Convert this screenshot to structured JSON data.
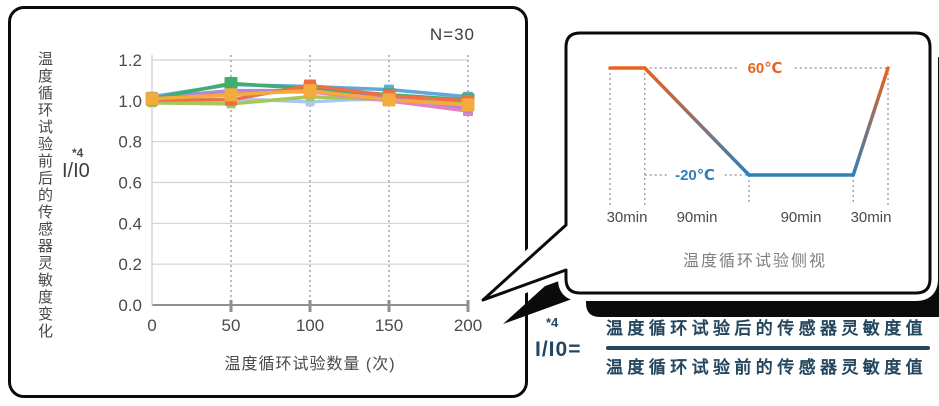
{
  "left_card": {
    "sample_count_label": "N=30",
    "y_axis_title": "温度循环试验前后的传感器灵敏度变化",
    "y_axis_footnote": "*4",
    "y_axis_unit": "I/I0",
    "x_axis_title": "温度循环试验数量 (次)"
  },
  "chart_data": [
    {
      "type": "line",
      "title": "温度循环试验前后的传感器灵敏度变化",
      "xlabel": "温度循环试验数量 (次)",
      "ylabel": "I/I0",
      "annotation": "N=30",
      "x": [
        0,
        50,
        100,
        150,
        200
      ],
      "xticks": [
        0,
        50,
        100,
        150,
        200
      ],
      "yticks": [
        0.0,
        0.2,
        0.4,
        0.6,
        0.8,
        1.0,
        1.2
      ],
      "ylim": [
        0.0,
        1.2
      ],
      "grid": "horizontal-solid, vertical-dotted",
      "legend_position": "none",
      "series": [
        {
          "name": "sample-pale-blue",
          "color": "#A8C9F0",
          "marker": "square",
          "marker_size": 9,
          "values": [
            1.0,
            1.01,
            0.995,
            1.015,
            1.005
          ]
        },
        {
          "name": "sample-yellow-green",
          "color": "#A5C75C",
          "marker": "square",
          "marker_size": 9,
          "values": [
            0.99,
            0.985,
            1.02,
            1.005,
            0.99
          ]
        },
        {
          "name": "sample-pink",
          "color": "#E381C3",
          "marker": "square",
          "marker_size": 10,
          "values": [
            1.0,
            1.04,
            1.045,
            1.0,
            0.95
          ]
        },
        {
          "name": "sample-purple",
          "color": "#B287D8",
          "marker": "square",
          "marker_size": 10,
          "values": [
            1.015,
            1.05,
            1.05,
            1.02,
            0.965
          ]
        },
        {
          "name": "sample-sky-blue",
          "color": "#60A8D8",
          "marker": "square",
          "marker_size": 10,
          "values": [
            1.02,
            1.08,
            1.07,
            1.055,
            1.02
          ]
        },
        {
          "name": "sample-green",
          "color": "#3FAE6E",
          "marker": "square",
          "marker_size": 13,
          "values": [
            1.01,
            1.085,
            1.06,
            1.03,
            1.005
          ]
        },
        {
          "name": "sample-orange-red",
          "color": "#EE6F45",
          "marker": "square",
          "marker_size": 12,
          "values": [
            1.005,
            1.005,
            1.075,
            1.025,
            1.0
          ]
        },
        {
          "name": "sample-amber",
          "color": "#F5AA3D",
          "marker": "square",
          "marker_size": 13,
          "values": [
            1.01,
            1.03,
            1.05,
            1.005,
            0.98
          ]
        }
      ]
    },
    {
      "type": "line",
      "title": "温度循环试验侧视",
      "x_minutes": [
        0,
        30,
        120,
        210,
        240
      ],
      "y_celsius": [
        60,
        60,
        -20,
        -20,
        60
      ],
      "durations": [
        "30min",
        "90min",
        "90min",
        "30min"
      ],
      "high_label": "60℃",
      "low_label": "-20℃",
      "high_color": "#E8641E",
      "low_color": "#2F7FB8"
    }
  ],
  "formula": {
    "footnote": "*4",
    "lhs": "I/I0",
    "equals": "=",
    "numerator": "温度循环试验后的传感器灵敏度值",
    "denominator": "温度循环试验前的传感器灵敏度值"
  },
  "colors": {
    "card_border": "#0b0b0b",
    "grid": "#d2d2d2",
    "axis": "#8f8f8f",
    "dotted_guide": "#9e9e9e",
    "tick_text": "#4a4a4a",
    "caption_text": "#7f7f7f",
    "formula_text": "#25465f"
  }
}
